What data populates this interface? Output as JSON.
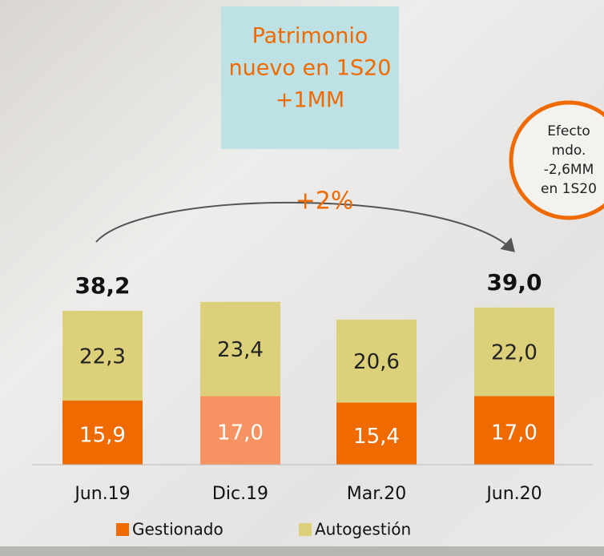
{
  "chart_data": {
    "type": "stacked-bar",
    "categories": [
      "Jun.19",
      "Dic.19",
      "Mar.20",
      "Jun.20"
    ],
    "series": [
      {
        "name": "Gestionado",
        "color": "#ef6a00",
        "colors": [
          "#ef6a00",
          "#f79262",
          "#ef6a00",
          "#ef6a00"
        ],
        "label_color": "#ffffff",
        "values": [
          15.9,
          17.0,
          15.4,
          17.0
        ],
        "value_labels": [
          "15,9",
          "17,0",
          "15,4",
          "17,0"
        ]
      },
      {
        "name": "Autogestión",
        "color": "#ddd07a",
        "label_color": "#222222",
        "values": [
          22.3,
          23.4,
          20.6,
          22.0
        ],
        "value_labels": [
          "22,3",
          "23,4",
          "20,6",
          "22,0"
        ]
      }
    ],
    "totals": {
      "values": [
        38.2,
        null,
        null,
        39.0
      ],
      "value_labels": [
        "38,2",
        null,
        null,
        "39,0"
      ]
    },
    "annotations": {
      "box": [
        "Patrimonio",
        "nuevo en 1S20",
        "+1MM"
      ],
      "circle": [
        "Efecto",
        "mdo.",
        "-2,6MM",
        "en 1S20"
      ],
      "arrow": "+2%"
    }
  }
}
